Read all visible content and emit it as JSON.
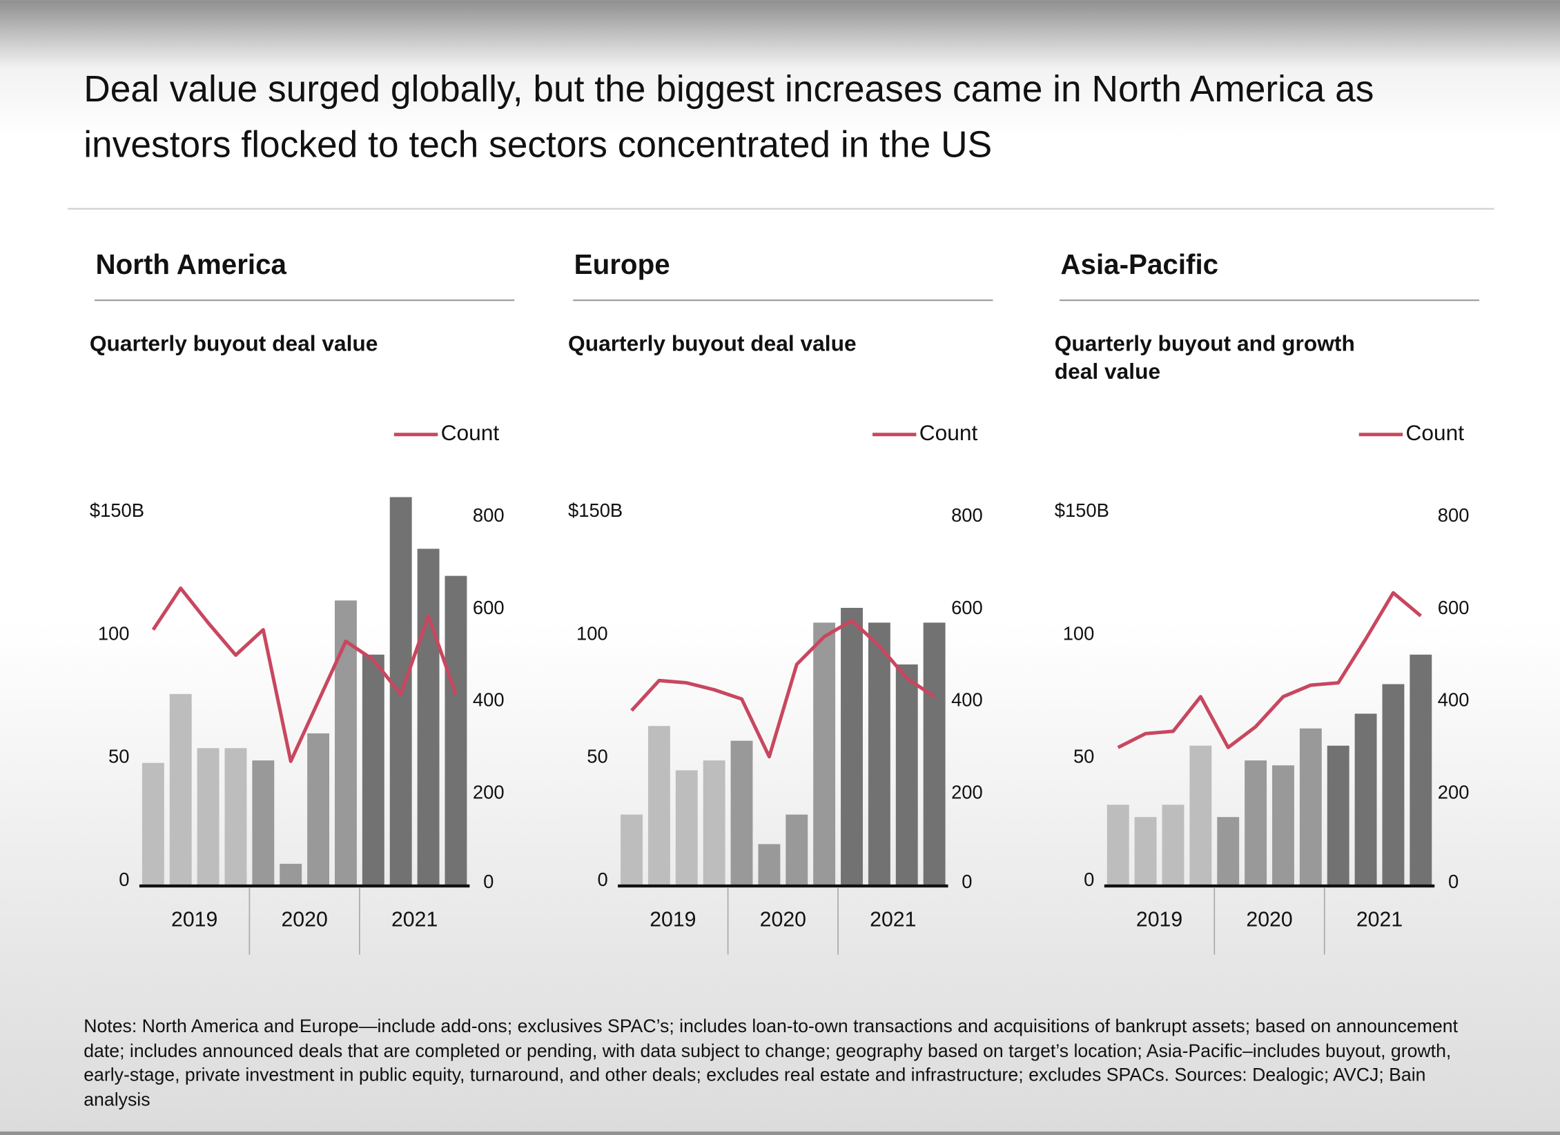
{
  "title": "Deal value surged globally, but the biggest increases came in North America as investors flocked to tech sectors concentrated in the US",
  "chart_data": [
    {
      "type": "bar_line",
      "title": "North America",
      "subtitle": "Quarterly buyout deal value",
      "categories": [
        null,
        null,
        null,
        null,
        null,
        null,
        null,
        null,
        null,
        null,
        null,
        null
      ],
      "year_labels": [
        "2019",
        "2020",
        "2021"
      ],
      "series": [
        {
          "values": [
            50,
            78,
            56,
            56,
            51,
            9,
            62,
            116,
            94,
            158,
            137,
            126
          ],
          "colors": [
            "#bdbdbd",
            "#bdbdbd",
            "#bdbdbd",
            "#bdbdbd",
            "#999999",
            "#999999",
            "#999999",
            "#999999",
            "#727272",
            "#727272",
            "#727272",
            "#727272"
          ]
        },
        {
          "name": "Count",
          "color": "#c8475f",
          "axis": "y2",
          "values": [
            555,
            645,
            570,
            500,
            555,
            270,
            400,
            530,
            490,
            415,
            585,
            415
          ]
        }
      ],
      "ylim": [
        0,
        160
      ],
      "yticks": [
        0,
        50,
        100,
        {
          "value": 150,
          "label": "$150B"
        }
      ],
      "y2lim": [
        0,
        853
      ],
      "y2ticks": [
        0,
        200,
        400,
        600,
        800
      ]
    },
    {
      "type": "bar_line",
      "title": "Europe",
      "subtitle": "Quarterly buyout deal value",
      "categories": [
        null,
        null,
        null,
        null,
        null,
        null,
        null,
        null,
        null,
        null,
        null,
        null
      ],
      "year_labels": [
        "2019",
        "2020",
        "2021"
      ],
      "series": [
        {
          "values": [
            29,
            65,
            47,
            51,
            59,
            17,
            29,
            107,
            113,
            107,
            90,
            107
          ],
          "colors": [
            "#bdbdbd",
            "#bdbdbd",
            "#bdbdbd",
            "#bdbdbd",
            "#999999",
            "#999999",
            "#999999",
            "#999999",
            "#727272",
            "#727272",
            "#727272",
            "#727272"
          ]
        },
        {
          "name": "Count",
          "color": "#c8475f",
          "axis": "y2",
          "values": [
            380,
            445,
            440,
            425,
            405,
            280,
            480,
            540,
            575,
            520,
            450,
            410
          ]
        }
      ],
      "ylim": [
        0,
        160
      ],
      "yticks": [
        0,
        50,
        100,
        {
          "value": 150,
          "label": "$150B"
        }
      ],
      "y2lim": [
        0,
        853
      ],
      "y2ticks": [
        0,
        200,
        400,
        600,
        800
      ]
    },
    {
      "type": "bar_line",
      "title": "Asia-Pacific",
      "subtitle": "Quarterly buyout and growth deal value",
      "categories": [
        null,
        null,
        null,
        null,
        null,
        null,
        null,
        null,
        null,
        null,
        null,
        null
      ],
      "year_labels": [
        "2019",
        "2020",
        "2021"
      ],
      "series": [
        {
          "values": [
            33,
            28,
            33,
            57,
            28,
            51,
            49,
            64,
            57,
            70,
            82,
            94
          ],
          "colors": [
            "#bdbdbd",
            "#bdbdbd",
            "#bdbdbd",
            "#bdbdbd",
            "#999999",
            "#999999",
            "#999999",
            "#999999",
            "#727272",
            "#727272",
            "#727272",
            "#727272"
          ]
        },
        {
          "name": "Count",
          "color": "#c8475f",
          "axis": "y2",
          "values": [
            300,
            330,
            335,
            410,
            300,
            345,
            410,
            435,
            440,
            535,
            635,
            585
          ]
        }
      ],
      "ylim": [
        0,
        160
      ],
      "yticks": [
        0,
        50,
        100,
        {
          "value": 150,
          "label": "$150B"
        }
      ],
      "y2lim": [
        0,
        853
      ],
      "y2ticks": [
        0,
        200,
        400,
        600,
        800
      ]
    }
  ],
  "notes": "Notes: North America and Europe—include add-ons; exclusives SPAC’s; includes loan-to-own transactions and acquisitions of bankrupt assets; based on announcement date; includes announced deals that are completed or pending, with data subject to change; geography based on target’s location; Asia-Pacific–includes buyout, growth, early-stage, private investment in public equity, turnaround, and other deals; excludes real estate and infrastructure; excludes SPACs. Sources: Dealogic; AVCJ; Bain analysis"
}
